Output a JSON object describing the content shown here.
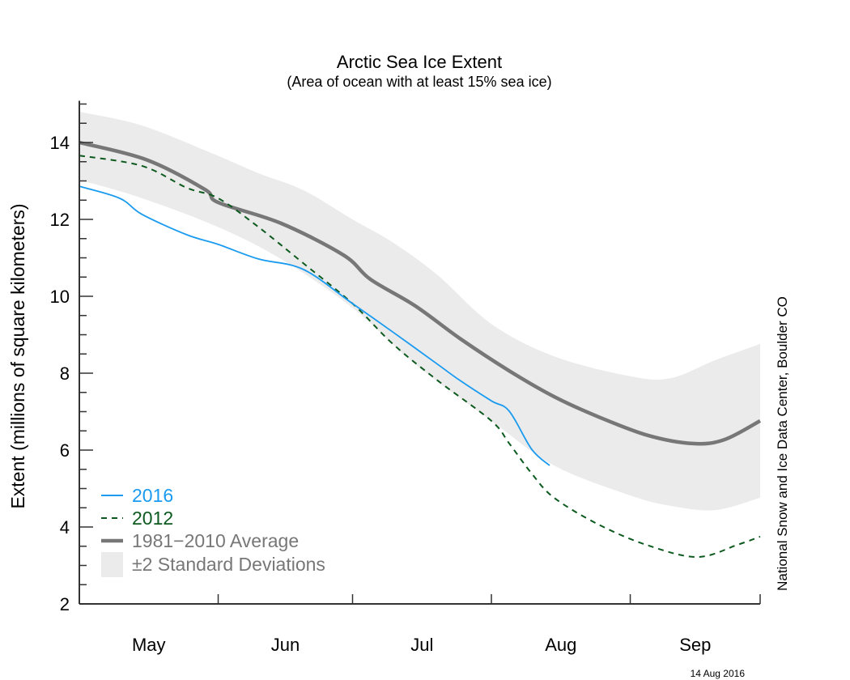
{
  "chart_data": {
    "type": "line",
    "title": "Arctic Sea Ice Extent",
    "subtitle": "(Area of ocean with at least 15% sea ice)",
    "xlabel": "",
    "ylabel": "Extent (millions of square kilometers)",
    "ylim": [
      2,
      15
    ],
    "yticks": [
      2,
      4,
      6,
      8,
      10,
      12,
      14
    ],
    "ytick_labels": [
      "2",
      "4",
      "6",
      "8",
      "10",
      "12",
      "14"
    ],
    "y_minor_step": 0.5,
    "xlim": [
      "05-01",
      "09-30"
    ],
    "month_labels": [
      "May",
      "Jun",
      "Jul",
      "Aug",
      "Sep"
    ],
    "month_starts": [
      "05-01",
      "06-01",
      "07-01",
      "08-01",
      "09-01",
      "09-30"
    ],
    "grid": false,
    "legend_position": "bottom-left",
    "band": {
      "name": "±2 Standard Deviations",
      "color": "#ebebeb",
      "upper": [
        [
          "05-01",
          14.8
        ],
        [
          "05-15",
          14.44
        ],
        [
          "05-31",
          13.7
        ],
        [
          "06-10",
          13.2
        ],
        [
          "06-20",
          12.76
        ],
        [
          "07-01",
          12.0
        ],
        [
          "07-10",
          11.4
        ],
        [
          "07-20",
          10.55
        ],
        [
          "08-01",
          9.28
        ],
        [
          "08-15",
          8.44
        ],
        [
          "09-01",
          7.92
        ],
        [
          "09-10",
          7.87
        ],
        [
          "09-20",
          8.34
        ],
        [
          "09-30",
          8.76
        ]
      ],
      "lower": [
        [
          "05-01",
          13.03
        ],
        [
          "05-15",
          12.55
        ],
        [
          "06-01",
          11.8
        ],
        [
          "06-15",
          10.97
        ],
        [
          "07-01",
          9.7
        ],
        [
          "07-15",
          8.23
        ],
        [
          "08-01",
          6.76
        ],
        [
          "08-15",
          5.6
        ],
        [
          "09-01",
          4.82
        ],
        [
          "09-10",
          4.55
        ],
        [
          "09-20",
          4.44
        ],
        [
          "09-30",
          4.76
        ]
      ]
    },
    "series": [
      {
        "name": "1981−2010 Average",
        "color": "#777777",
        "style": "thick",
        "points": [
          [
            "05-01",
            14.0
          ],
          [
            "05-16",
            13.55
          ],
          [
            "05-29",
            12.78
          ],
          [
            "06-01",
            12.44
          ],
          [
            "06-15",
            11.9
          ],
          [
            "06-29",
            11.07
          ],
          [
            "07-05",
            10.44
          ],
          [
            "07-15",
            9.75
          ],
          [
            "07-25",
            8.9
          ],
          [
            "08-05",
            8.06
          ],
          [
            "08-15",
            7.39
          ],
          [
            "08-25",
            6.86
          ],
          [
            "09-05",
            6.38
          ],
          [
            "09-15",
            6.17
          ],
          [
            "09-22",
            6.27
          ],
          [
            "09-30",
            6.76
          ]
        ]
      },
      {
        "name": "2016",
        "color": "#1a9bf0",
        "style": "solid",
        "points": [
          [
            "05-01",
            12.86
          ],
          [
            "05-10",
            12.55
          ],
          [
            "05-15",
            12.13
          ],
          [
            "05-25",
            11.6
          ],
          [
            "06-01",
            11.35
          ],
          [
            "06-10",
            10.97
          ],
          [
            "06-20",
            10.7
          ],
          [
            "07-01",
            9.81
          ],
          [
            "07-10",
            9.07
          ],
          [
            "07-20",
            8.23
          ],
          [
            "07-25",
            7.81
          ],
          [
            "08-01",
            7.28
          ],
          [
            "08-05",
            7.01
          ],
          [
            "08-10",
            6.02
          ],
          [
            "08-14",
            5.6
          ]
        ]
      },
      {
        "name": "2012",
        "color": "#0d5a1f",
        "style": "dashed",
        "points": [
          [
            "05-01",
            13.66
          ],
          [
            "05-15",
            13.39
          ],
          [
            "05-25",
            12.82
          ],
          [
            "06-01",
            12.55
          ],
          [
            "06-10",
            11.8
          ],
          [
            "06-20",
            10.86
          ],
          [
            "07-01",
            9.81
          ],
          [
            "07-10",
            8.76
          ],
          [
            "07-20",
            7.81
          ],
          [
            "08-01",
            6.76
          ],
          [
            "08-05",
            6.17
          ],
          [
            "08-10",
            5.39
          ],
          [
            "08-15",
            4.76
          ],
          [
            "08-25",
            4.06
          ],
          [
            "09-05",
            3.52
          ],
          [
            "09-16",
            3.22
          ],
          [
            "09-25",
            3.54
          ],
          [
            "09-30",
            3.75
          ]
        ]
      }
    ],
    "legend": [
      {
        "label": "2016",
        "color": "#1a9bf0",
        "kind": "solid"
      },
      {
        "label": "2012",
        "color": "#0d5a1f",
        "kind": "dashed"
      },
      {
        "label": "1981−2010 Average",
        "color": "#777777",
        "kind": "thick"
      },
      {
        "label": "±2 Standard Deviations",
        "color": "#777777",
        "kind": "band"
      }
    ],
    "credit": "National Snow and Ice Data Center, Boulder CO",
    "date_stamp": "14 Aug 2016"
  }
}
